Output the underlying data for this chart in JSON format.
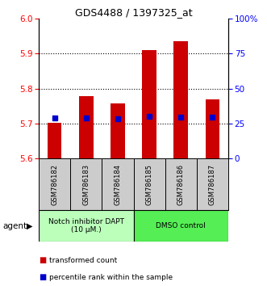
{
  "title": "GDS4488 / 1397325_at",
  "samples": [
    "GSM786182",
    "GSM786183",
    "GSM786184",
    "GSM786185",
    "GSM786186",
    "GSM786187"
  ],
  "bar_bottoms": [
    5.6,
    5.6,
    5.6,
    5.6,
    5.6,
    5.6
  ],
  "bar_tops": [
    5.702,
    5.779,
    5.757,
    5.91,
    5.935,
    5.77
  ],
  "percentile_values": [
    5.716,
    5.716,
    5.714,
    5.722,
    5.718,
    5.719
  ],
  "ylim_left": [
    5.6,
    6.0
  ],
  "ylim_right": [
    0,
    100
  ],
  "yticks_left": [
    5.6,
    5.7,
    5.8,
    5.9,
    6.0
  ],
  "yticks_right": [
    0,
    25,
    50,
    75,
    100
  ],
  "ytick_labels_right": [
    "0",
    "25",
    "50",
    "75",
    "100%"
  ],
  "gridlines": [
    5.7,
    5.8,
    5.9
  ],
  "bar_color": "#cc0000",
  "percentile_color": "#0000cc",
  "group1_label": "Notch inhibitor DAPT\n(10 μM.)",
  "group2_label": "DMSO control",
  "group1_color": "#bbffbb",
  "group2_color": "#55ee55",
  "sample_bg_color": "#cccccc",
  "agent_label": "agent",
  "legend_bar_label": "transformed count",
  "legend_pct_label": "percentile rank within the sample",
  "n_group1": 3,
  "n_group2": 3,
  "bar_width": 0.45
}
